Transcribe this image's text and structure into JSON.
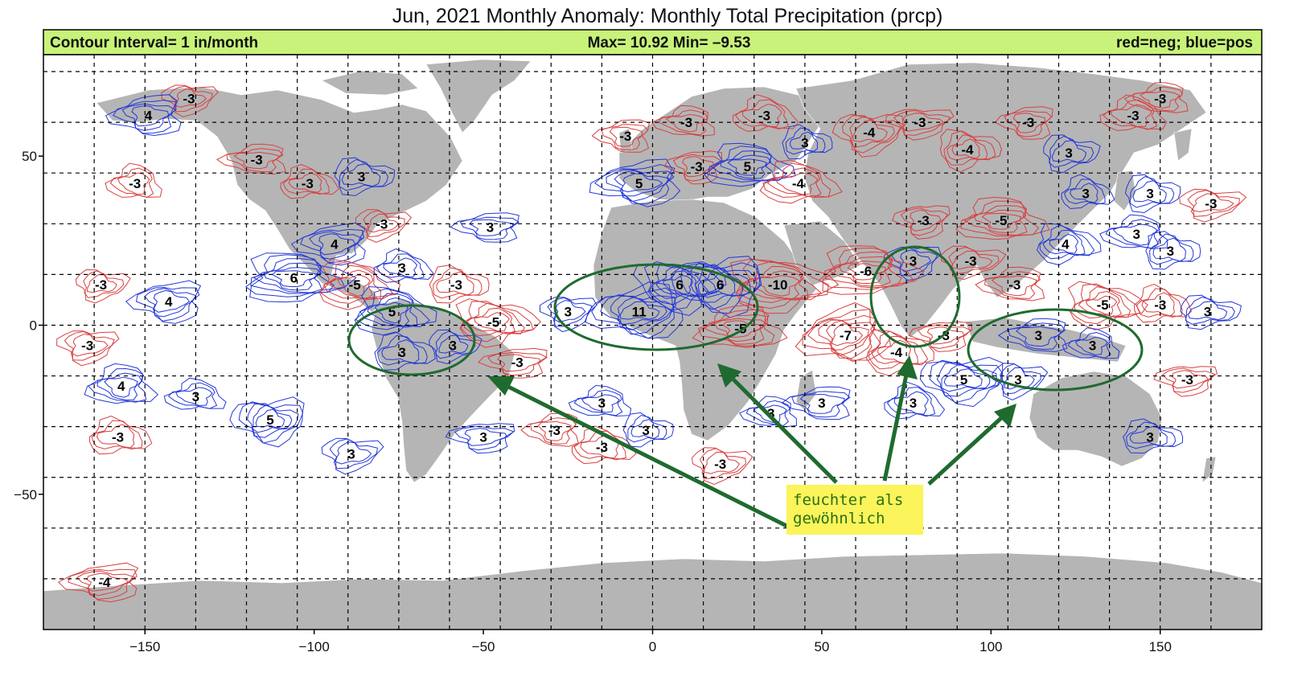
{
  "title": "Jun, 2021   Monthly Anomaly: Monthly Total Precipitation (prcp)",
  "header": {
    "left": "Contour Interval= 1 in/month",
    "center": "Max= 10.92  Min= –9.53",
    "right": "red=neg; blue=pos",
    "bg_color": "#c8f27a"
  },
  "colors": {
    "negative": "#d94040",
    "positive": "#2438d8",
    "land": "#b5b5b5",
    "annotation": "#1f6b2f",
    "note_bg": "#fbf45a"
  },
  "axes": {
    "x_ticks": [
      {
        "value": -150,
        "label": "−150"
      },
      {
        "value": -100,
        "label": "−100"
      },
      {
        "value": -50,
        "label": "−50"
      },
      {
        "value": 0,
        "label": "0"
      },
      {
        "value": 50,
        "label": "50"
      },
      {
        "value": 100,
        "label": "100"
      },
      {
        "value": 150,
        "label": "150"
      }
    ],
    "y_ticks": [
      {
        "value": 50,
        "label": "50"
      },
      {
        "value": 0,
        "label": "0"
      },
      {
        "value": -50,
        "label": "−50"
      }
    ],
    "x_range": [
      -180,
      180
    ],
    "y_range": [
      -90,
      80
    ],
    "grid_lon_step": 15,
    "grid_lat_step": 15
  },
  "contour_labels": [
    {
      "lon": -137,
      "lat": 67,
      "text": "-3"
    },
    {
      "lon": -149,
      "lat": 62,
      "text": "4"
    },
    {
      "lon": -117,
      "lat": 49,
      "text": "-3"
    },
    {
      "lon": -153,
      "lat": 42,
      "text": "-3"
    },
    {
      "lon": -102,
      "lat": 42,
      "text": "-3"
    },
    {
      "lon": -86,
      "lat": 44,
      "text": "3"
    },
    {
      "lon": -80,
      "lat": 30,
      "text": "-3"
    },
    {
      "lon": -94,
      "lat": 24,
      "text": "4"
    },
    {
      "lon": -106,
      "lat": 14,
      "text": "6"
    },
    {
      "lon": -88,
      "lat": 12,
      "text": "-5"
    },
    {
      "lon": -74,
      "lat": 17,
      "text": "3"
    },
    {
      "lon": -58,
      "lat": 12,
      "text": "-3"
    },
    {
      "lon": -163,
      "lat": 12,
      "text": "-3"
    },
    {
      "lon": -143,
      "lat": 7,
      "text": "4"
    },
    {
      "lon": -48,
      "lat": 29,
      "text": "3"
    },
    {
      "lon": -77,
      "lat": 4,
      "text": "5"
    },
    {
      "lon": -47,
      "lat": 1,
      "text": "-5"
    },
    {
      "lon": -74,
      "lat": -8,
      "text": "3"
    },
    {
      "lon": -59,
      "lat": -6,
      "text": "3"
    },
    {
      "lon": -167,
      "lat": -6,
      "text": "-3"
    },
    {
      "lon": -40,
      "lat": -11,
      "text": "-3"
    },
    {
      "lon": -157,
      "lat": -18,
      "text": "4"
    },
    {
      "lon": -135,
      "lat": -21,
      "text": "3"
    },
    {
      "lon": -158,
      "lat": -33,
      "text": "-3"
    },
    {
      "lon": -113,
      "lat": -28,
      "text": "5"
    },
    {
      "lon": -89,
      "lat": -38,
      "text": "3"
    },
    {
      "lon": -50,
      "lat": -33,
      "text": "3"
    },
    {
      "lon": -29,
      "lat": -31,
      "text": "-3"
    },
    {
      "lon": -15,
      "lat": -23,
      "text": "3"
    },
    {
      "lon": -15,
      "lat": -36,
      "text": "-3"
    },
    {
      "lon": -2,
      "lat": -31,
      "text": "3"
    },
    {
      "lon": 20,
      "lat": -41,
      "text": "-3"
    },
    {
      "lon": -162,
      "lat": -76,
      "text": "-4"
    },
    {
      "lon": -8,
      "lat": 56,
      "text": "-3"
    },
    {
      "lon": 10,
      "lat": 60,
      "text": "-3"
    },
    {
      "lon": 33,
      "lat": 62,
      "text": "-3"
    },
    {
      "lon": 45,
      "lat": 54,
      "text": "3"
    },
    {
      "lon": 64,
      "lat": 57,
      "text": "-4"
    },
    {
      "lon": 79,
      "lat": 60,
      "text": "-3"
    },
    {
      "lon": 111,
      "lat": 60,
      "text": "-3"
    },
    {
      "lon": 150,
      "lat": 67,
      "text": "-3"
    },
    {
      "lon": 142,
      "lat": 62,
      "text": "-3"
    },
    {
      "lon": 93,
      "lat": 52,
      "text": "-4"
    },
    {
      "lon": 123,
      "lat": 51,
      "text": "3"
    },
    {
      "lon": -4,
      "lat": 42,
      "text": "5"
    },
    {
      "lon": 13,
      "lat": 47,
      "text": "-3"
    },
    {
      "lon": 28,
      "lat": 47,
      "text": "5"
    },
    {
      "lon": 43,
      "lat": 42,
      "text": "-4"
    },
    {
      "lon": 128,
      "lat": 39,
      "text": "3"
    },
    {
      "lon": 147,
      "lat": 39,
      "text": "3"
    },
    {
      "lon": 165,
      "lat": 36,
      "text": "-3"
    },
    {
      "lon": 80,
      "lat": 31,
      "text": "-3"
    },
    {
      "lon": 103,
      "lat": 31,
      "text": "-5"
    },
    {
      "lon": 143,
      "lat": 27,
      "text": "3"
    },
    {
      "lon": 122,
      "lat": 24,
      "text": "4"
    },
    {
      "lon": 153,
      "lat": 22,
      "text": "3"
    },
    {
      "lon": 94,
      "lat": 19,
      "text": "-3"
    },
    {
      "lon": 77,
      "lat": 19,
      "text": "3"
    },
    {
      "lon": 63,
      "lat": 16,
      "text": "-6"
    },
    {
      "lon": 37,
      "lat": 12,
      "text": "-10"
    },
    {
      "lon": 8,
      "lat": 12,
      "text": "6"
    },
    {
      "lon": 20,
      "lat": 12,
      "text": "6"
    },
    {
      "lon": -4,
      "lat": 4,
      "text": "11"
    },
    {
      "lon": -25,
      "lat": 4,
      "text": "3"
    },
    {
      "lon": 26,
      "lat": -1,
      "text": "-5"
    },
    {
      "lon": 107,
      "lat": 12,
      "text": "-3"
    },
    {
      "lon": 133,
      "lat": 6,
      "text": "-5"
    },
    {
      "lon": 150,
      "lat": 6,
      "text": "-3"
    },
    {
      "lon": 164,
      "lat": 4,
      "text": "3"
    },
    {
      "lon": 57,
      "lat": -3,
      "text": "-7"
    },
    {
      "lon": 86,
      "lat": -3,
      "text": "-3"
    },
    {
      "lon": 114,
      "lat": -3,
      "text": "3"
    },
    {
      "lon": 130,
      "lat": -6,
      "text": "3"
    },
    {
      "lon": 72,
      "lat": -8,
      "text": "-4"
    },
    {
      "lon": 92,
      "lat": -16,
      "text": "5"
    },
    {
      "lon": 108,
      "lat": -16,
      "text": "3"
    },
    {
      "lon": 158,
      "lat": -16,
      "text": "-3"
    },
    {
      "lon": 50,
      "lat": -23,
      "text": "3"
    },
    {
      "lon": 35,
      "lat": -26,
      "text": "3"
    },
    {
      "lon": 77,
      "lat": -23,
      "text": "3"
    },
    {
      "lon": 147,
      "lat": -33,
      "text": "3"
    }
  ],
  "annotation": {
    "text_line1": "feuchter als",
    "text_line2": "gewöhnlich"
  }
}
